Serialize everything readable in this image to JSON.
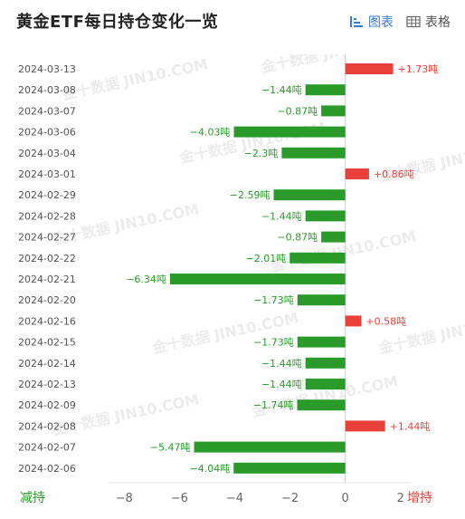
{
  "header": {
    "title": "黄金ETF每日持仓变化一览",
    "chart_tab_label": "图表",
    "table_tab_label": "表格",
    "chart_tab_icon": "bar-chart-icon",
    "table_tab_icon": "table-grid-icon"
  },
  "watermark": "金十数据 JIN10.COM",
  "footer": {
    "decrease_label": "减持",
    "increase_label": "增持"
  },
  "colors": {
    "positive": "#e8403a",
    "negative": "#2a9a2a",
    "active_tab": "#3a7bd5"
  },
  "chart_data": {
    "type": "bar",
    "orientation": "horizontal",
    "categories": [
      "2024-03-13",
      "2024-03-08",
      "2024-03-07",
      "2024-03-06",
      "2024-03-04",
      "2024-03-01",
      "2024-02-29",
      "2024-02-28",
      "2024-02-27",
      "2024-02-22",
      "2024-02-21",
      "2024-02-20",
      "2024-02-16",
      "2024-02-15",
      "2024-02-14",
      "2024-02-13",
      "2024-02-09",
      "2024-02-08",
      "2024-02-07",
      "2024-02-06"
    ],
    "values": [
      1.73,
      -1.44,
      -0.87,
      -4.03,
      -2.3,
      0.86,
      -2.59,
      -1.44,
      -0.87,
      -2.01,
      -6.34,
      -1.73,
      0.58,
      -1.73,
      -1.44,
      -1.44,
      -1.74,
      1.44,
      -5.47,
      -4.04
    ],
    "data_labels": [
      "+1.73吨",
      "−1.44吨",
      "−0.87吨",
      "−4.03吨",
      "−2.3吨",
      "+0.86吨",
      "−2.59吨",
      "−1.44吨",
      "−0.87吨",
      "−2.01吨",
      "−6.34吨",
      "−1.73吨",
      "+0.58吨",
      "−1.73吨",
      "−1.44吨",
      "−1.44吨",
      "−1.74吨",
      "+1.44吨",
      "−5.47吨",
      "−4.04吨"
    ],
    "xlim": [
      -8.4,
      2.4
    ],
    "ticks": [
      -8,
      -6,
      -4,
      -2,
      0,
      2
    ],
    "tick_labels": [
      "−8",
      "−6",
      "−4",
      "−2",
      "0",
      "2"
    ]
  }
}
